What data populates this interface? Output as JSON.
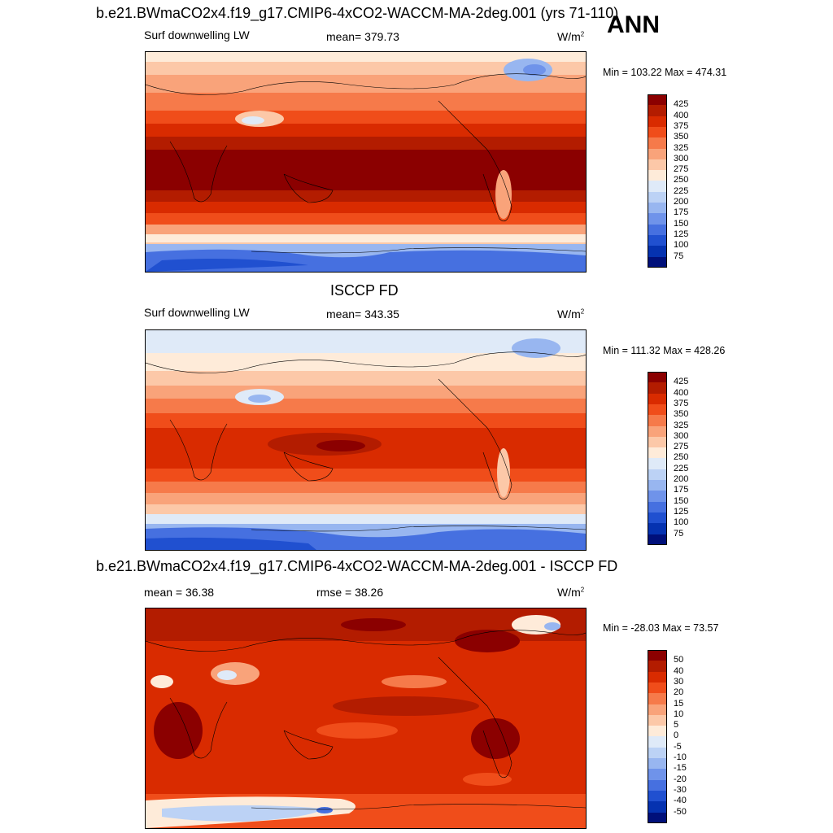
{
  "top_title": "b.e21.BWmaCO2x4.f19_g17.CMIP6-4xCO2-WACCM-MA-2deg.001 (yrs 71-110)",
  "season": "ANN",
  "panel1": {
    "variable": "Surf downwelling LW",
    "mean": "mean= 379.73",
    "units": "W/m",
    "units_sup": "2",
    "minmax": "Min = 103.22 Max = 474.31"
  },
  "panel2": {
    "title": "ISCCP FD",
    "variable": "Surf downwelling LW",
    "mean": "mean= 343.35",
    "units": "W/m",
    "units_sup": "2",
    "minmax": "Min = 111.32 Max = 428.26"
  },
  "panel3": {
    "title": "b.e21.BWmaCO2x4.f19_g17.CMIP6-4xCO2-WACCM-MA-2deg.001 - ISCCP FD",
    "mean": "mean =  36.38",
    "rmse": "rmse =  38.26",
    "units": "W/m",
    "units_sup": "2",
    "minmax": "Min = -28.03 Max =  73.57"
  },
  "colorbar_abs": {
    "labels": [
      "425",
      "400",
      "375",
      "350",
      "325",
      "300",
      "275",
      "250",
      "225",
      "200",
      "175",
      "150",
      "125",
      "100",
      "75"
    ],
    "colors": [
      "#8b0000",
      "#b31c00",
      "#d92b00",
      "#f04d1a",
      "#f67a4a",
      "#f9a37a",
      "#fcc8a8",
      "#feebd9",
      "#dfeaf8",
      "#bcd2f5",
      "#98b6f0",
      "#6f93ea",
      "#4670e0",
      "#2050d0",
      "#0532b0",
      "#00107a"
    ]
  },
  "colorbar_diff": {
    "labels": [
      "50",
      "40",
      "30",
      "20",
      "15",
      "10",
      "5",
      "0",
      "-5",
      "-10",
      "-15",
      "-20",
      "-30",
      "-40",
      "-50"
    ],
    "colors": [
      "#8b0000",
      "#b31c00",
      "#d92b00",
      "#f04d1a",
      "#f67a4a",
      "#f9a37a",
      "#fcc8a8",
      "#feebd9",
      "#dfeaf8",
      "#bcd2f5",
      "#98b6f0",
      "#6f93ea",
      "#4670e0",
      "#2050d0",
      "#0532b0",
      "#00107a"
    ]
  }
}
